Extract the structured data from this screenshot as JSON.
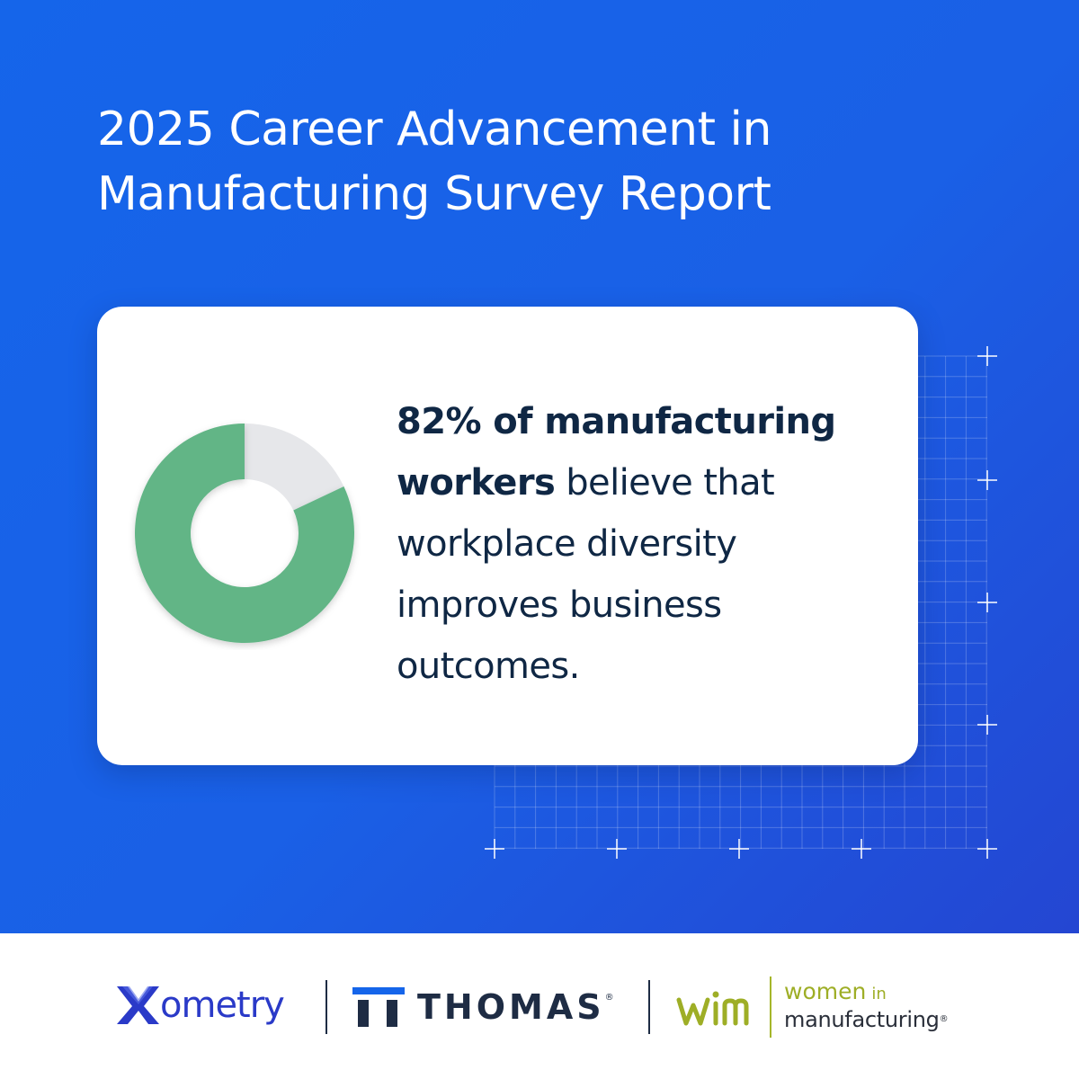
{
  "header": {
    "title_line1": "2025 Career Advancement in",
    "title_line2": "Manufacturing Survey Report"
  },
  "stat_card": {
    "percent_value": 82,
    "highlight_text": "82% of manufacturing workers",
    "body_text": " believe that workplace diversity improves business outcomes.",
    "colors": {
      "filled": "#62b586",
      "remaining": "#e6e7ea",
      "text": "#0f2744"
    }
  },
  "footer": {
    "logos": [
      {
        "name": "Xometry",
        "text": "ometry",
        "icon": "xometry-x-icon",
        "color": "#2a3ac8"
      },
      {
        "name": "Thomas",
        "text": "THOMAS",
        "registered": "®",
        "icon": "thomas-bars-icon",
        "color": "#1e2c44"
      },
      {
        "name": "Women in Manufacturing",
        "mark": "wim",
        "line1_a": "women",
        "line1_b": "in",
        "line2": "manufacturing",
        "registered": "®",
        "color": "#9eae26"
      }
    ]
  },
  "colors": {
    "background_start": "#1565ea",
    "background_end": "#2446d2",
    "card": "#ffffff"
  }
}
